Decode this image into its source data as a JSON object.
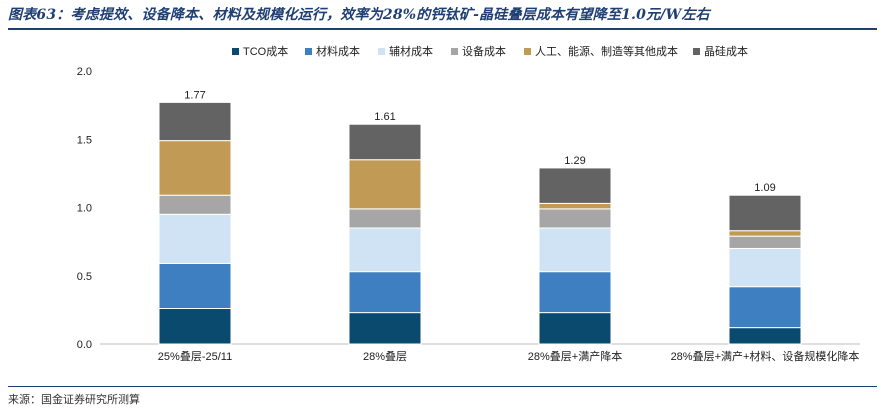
{
  "title": "图表63：考虑提效、设备降本、材料及规模化运行，效率为28%的钙钛矿-晶硅叠层成本有望降至1.0元/W左右",
  "source": "来源：国金证券研究所测算",
  "chart_data": {
    "type": "bar",
    "stacked": true,
    "categories": [
      "25%叠层-25/11",
      "28%叠层",
      "28%叠层+满产降本",
      "28%叠层+满产+材料、设备规模化降本"
    ],
    "ylim": [
      0,
      2.0
    ],
    "yticks": [
      "0.0",
      "0.5",
      "1.0",
      "1.5",
      "2.0"
    ],
    "legend_position": "top",
    "series": [
      {
        "name": "TCO成本",
        "color": "#0a4a6e",
        "values": [
          0.26,
          0.23,
          0.23,
          0.12
        ]
      },
      {
        "name": "材料成本",
        "color": "#3d7fc1",
        "values": [
          0.33,
          0.3,
          0.3,
          0.3
        ]
      },
      {
        "name": "辅材成本",
        "color": "#cfe3f4",
        "values": [
          0.36,
          0.32,
          0.32,
          0.28
        ]
      },
      {
        "name": "设备成本",
        "color": "#a6a6a6",
        "values": [
          0.14,
          0.14,
          0.14,
          0.09
        ]
      },
      {
        "name": "人工、能源、制造等其他成本",
        "color": "#c19a55",
        "values": [
          0.4,
          0.36,
          0.04,
          0.04
        ]
      },
      {
        "name": "晶硅成本",
        "color": "#636363",
        "values": [
          0.28,
          0.26,
          0.26,
          0.26
        ]
      }
    ],
    "totals": [
      "1.77",
      "1.61",
      "1.29",
      "1.09"
    ]
  }
}
